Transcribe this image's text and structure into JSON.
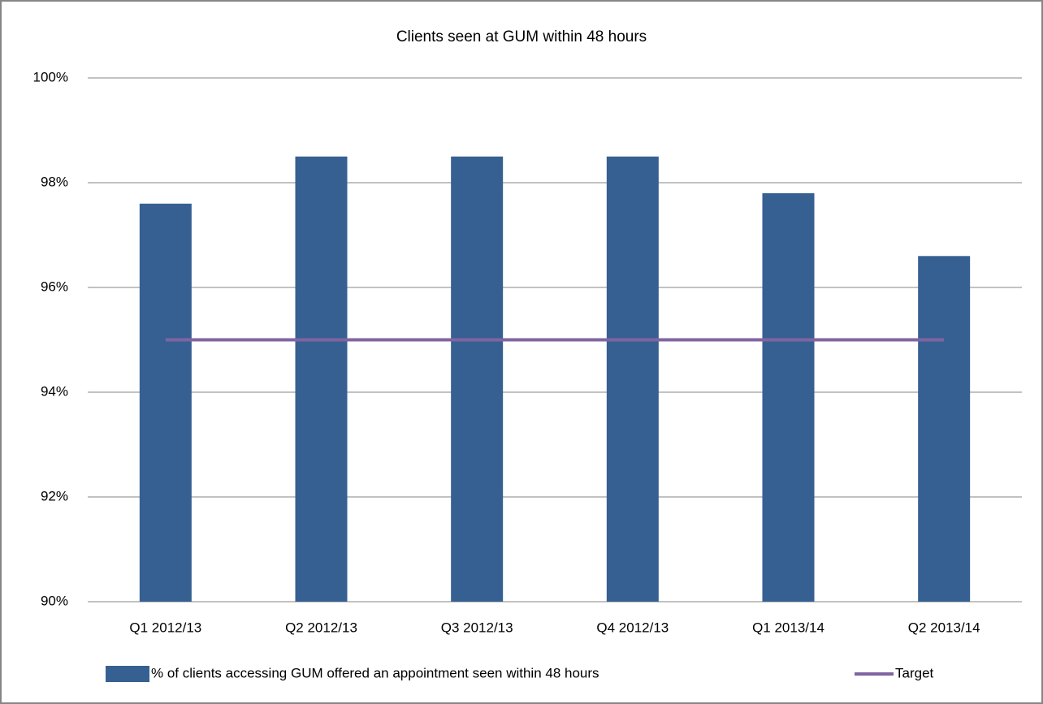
{
  "chart_data": {
    "type": "bar",
    "title": "Clients seen at GUM within 48 hours",
    "categories": [
      "Q1 2012/13",
      "Q2 2012/13",
      "Q3 2012/13",
      "Q4 2012/13",
      "Q1 2013/14",
      "Q2 2013/14"
    ],
    "series": [
      {
        "name": "% of clients accessing GUM offered an appointment seen within 48 hours",
        "color": "#376092",
        "values": [
          97.6,
          98.5,
          98.5,
          98.5,
          97.8,
          96.6
        ]
      },
      {
        "name": "Target",
        "type": "line",
        "color": "#8064a2",
        "values": [
          95,
          95,
          95,
          95,
          95,
          95
        ]
      }
    ],
    "ylim": [
      90,
      100
    ],
    "yticks": [
      {
        "value": 90,
        "label": "90%"
      },
      {
        "value": 92,
        "label": "92%"
      },
      {
        "value": 94,
        "label": "94%"
      },
      {
        "value": 96,
        "label": "96%"
      },
      {
        "value": 98,
        "label": "98%"
      },
      {
        "value": 100,
        "label": "100%"
      }
    ],
    "grid": true,
    "legend": "bottom"
  }
}
